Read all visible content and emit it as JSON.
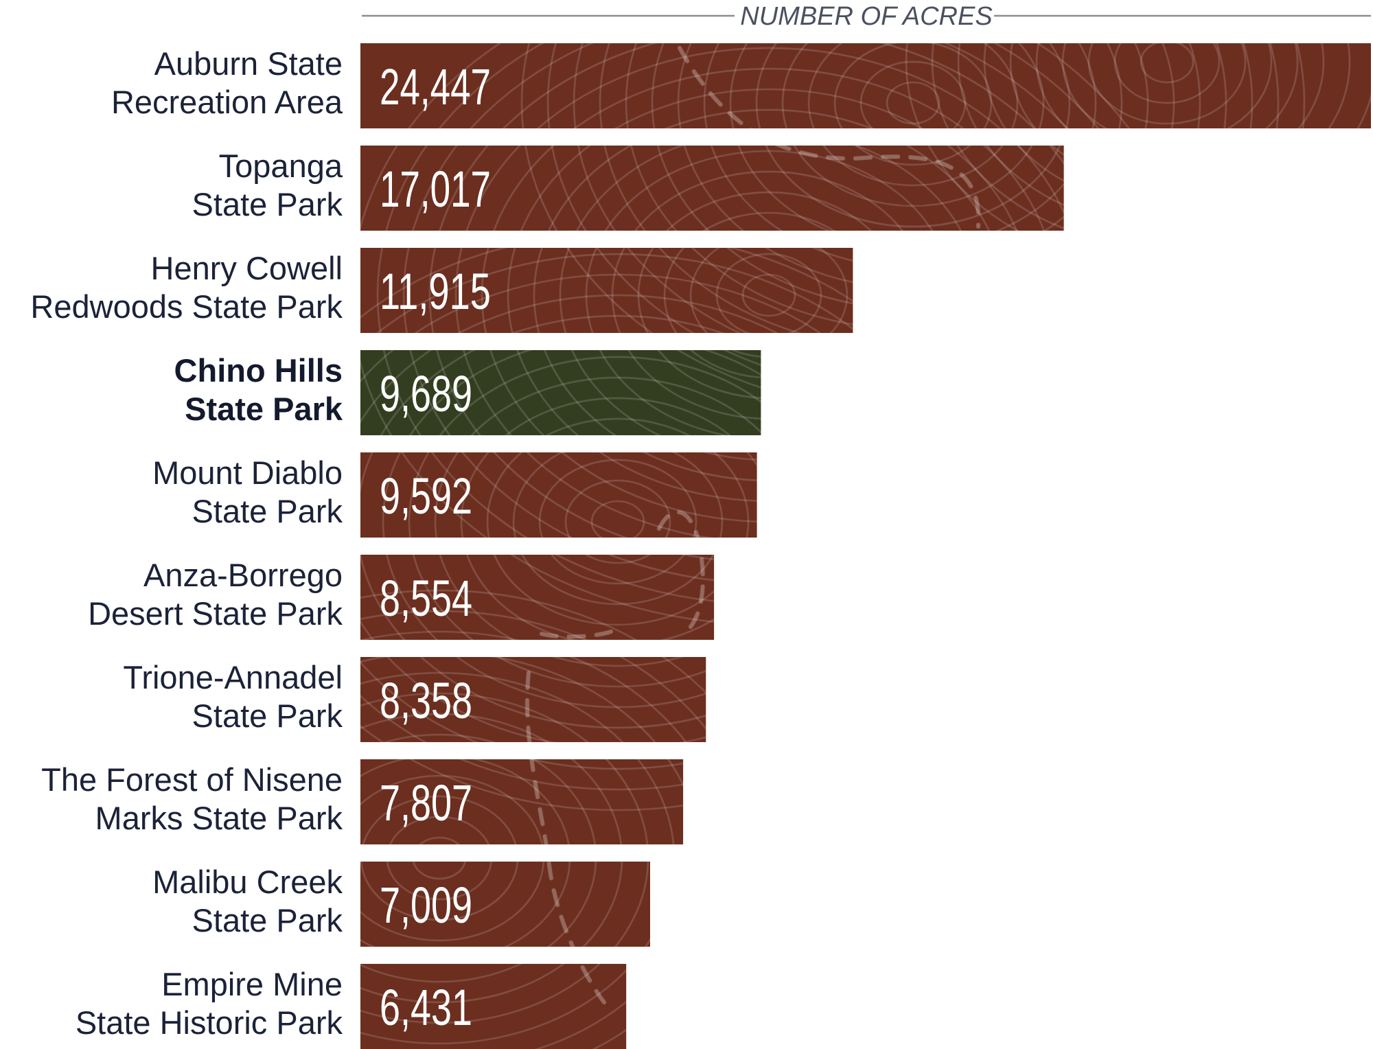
{
  "chart_data": {
    "type": "bar",
    "orientation": "horizontal",
    "title": "NUMBER OF ACRES",
    "categories": [
      [
        "Auburn State",
        "Recreation Area"
      ],
      [
        "Topanga",
        "State Park"
      ],
      [
        "Henry Cowell",
        "Redwoods State Park"
      ],
      [
        "Chino Hills",
        "State Park"
      ],
      [
        "Mount Diablo",
        "State Park"
      ],
      [
        "Anza-Borrego",
        "Desert State Park"
      ],
      [
        "Trione-Annadel",
        "State Park"
      ],
      [
        "The Forest of Nisene",
        "Marks State Park"
      ],
      [
        "Malibu Creek",
        "State Park"
      ],
      [
        "Empire Mine",
        "State Historic Park"
      ]
    ],
    "values": [
      24447,
      17017,
      11915,
      9689,
      9592,
      8554,
      8358,
      7807,
      7009,
      6431
    ],
    "value_labels": [
      "24,447",
      "17,017",
      "11,915",
      "9,689",
      "9,592",
      "8,554",
      "8,358",
      "7,807",
      "7,009",
      "6,431"
    ],
    "highlight_index": 3,
    "xlim": [
      0,
      24447
    ],
    "grid": false,
    "legend": "none",
    "colors": {
      "bar": "#6b2e1f",
      "highlight_bar": "#333d20",
      "label_text": "#1b2238",
      "axis_title": "#4b5060",
      "axis_line": "#8a8d96"
    }
  }
}
